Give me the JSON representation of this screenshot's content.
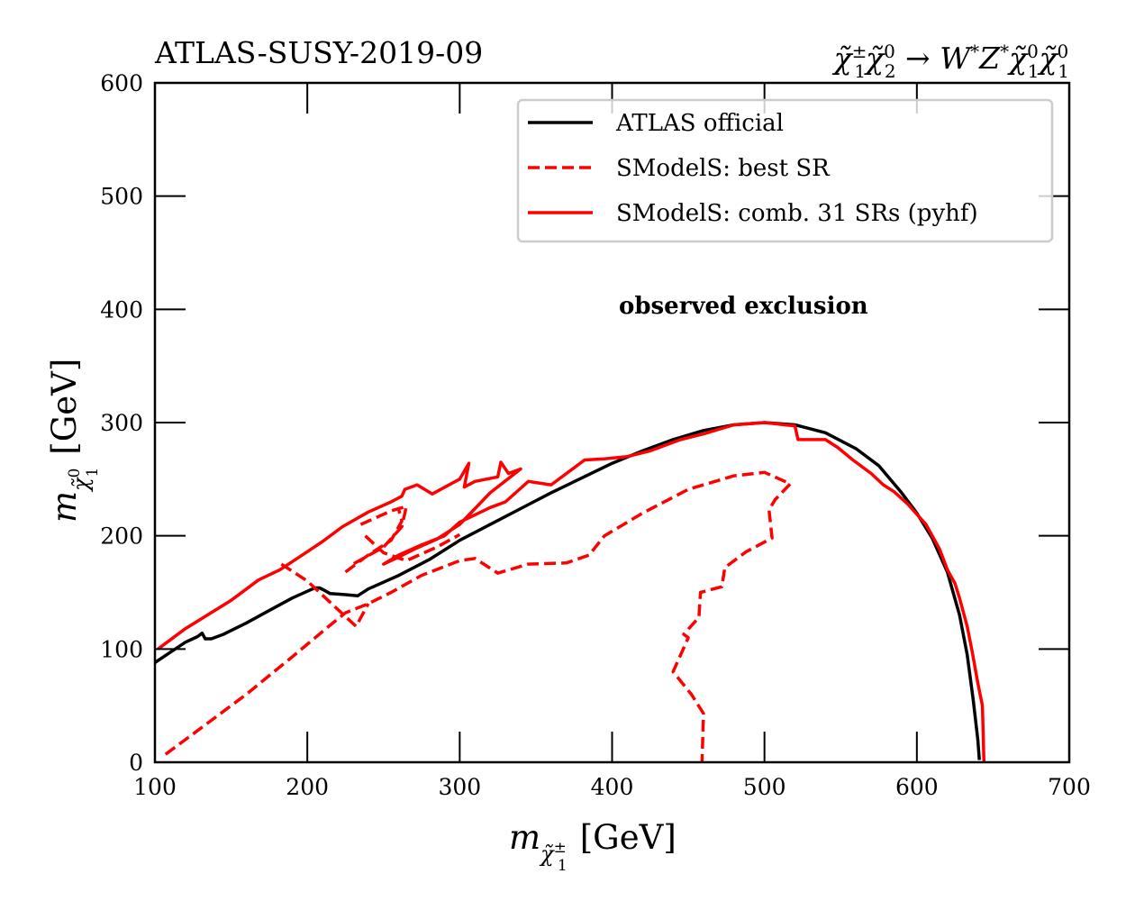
{
  "chart_data": {
    "type": "line",
    "title_left": "ATLAS-SUSY-2019-09",
    "title_right": "χ̃₁^± χ̃₂^0 → W* Z* χ̃₁^0 χ̃₁^0",
    "title_right_parts": {
      "p1": "χ̃",
      "p1sup": "±",
      "p1sub": "1",
      "p2": "χ̃",
      "p2sup": "0",
      "p2sub": "2",
      "arrow": " → ",
      "p3": "W",
      "p3sup": "*",
      "p4": "Z",
      "p4sup": "*",
      "p5": "χ̃",
      "p5sup": "0",
      "p5sub": "1",
      "p6": "χ̃",
      "p6sup": "0",
      "p6sub": "1"
    },
    "xlabel": "m_{χ̃₁^±} [GeV]",
    "xlabel_parts": {
      "m": "m",
      "sub": "χ̃",
      "subsup": "±",
      "subsub": "1",
      "unit": "[GeV]"
    },
    "ylabel": "m_{χ̃₁^0} [GeV]",
    "ylabel_parts": {
      "m": "m",
      "sub": "χ̃",
      "subsup": "0",
      "subsub": "1",
      "unit": "[GeV]"
    },
    "xlim": [
      100,
      700
    ],
    "ylim": [
      0,
      600
    ],
    "xticks": [
      100,
      200,
      300,
      400,
      500,
      600,
      700
    ],
    "yticks": [
      0,
      100,
      200,
      300,
      400,
      500,
      600
    ],
    "grid": false,
    "legend_position": "top-right",
    "annotation": "observed exclusion",
    "series": [
      {
        "name": "ATLAS official",
        "color": "#000000",
        "style": "solid",
        "points": [
          [
            100,
            88
          ],
          [
            110,
            97
          ],
          [
            120,
            106
          ],
          [
            128,
            111
          ],
          [
            131,
            114
          ],
          [
            133,
            109
          ],
          [
            137,
            109
          ],
          [
            145,
            113
          ],
          [
            160,
            123
          ],
          [
            175,
            134
          ],
          [
            190,
            145
          ],
          [
            200,
            151
          ],
          [
            205,
            154
          ],
          [
            208,
            154
          ],
          [
            211,
            152
          ],
          [
            215,
            149
          ],
          [
            225,
            148
          ],
          [
            233,
            147
          ],
          [
            240,
            153
          ],
          [
            260,
            165
          ],
          [
            280,
            179
          ],
          [
            300,
            196
          ],
          [
            320,
            210
          ],
          [
            340,
            224
          ],
          [
            360,
            238
          ],
          [
            380,
            251
          ],
          [
            400,
            264
          ],
          [
            420,
            275
          ],
          [
            440,
            285
          ],
          [
            460,
            293
          ],
          [
            480,
            298
          ],
          [
            500,
            300
          ],
          [
            520,
            298
          ],
          [
            540,
            291
          ],
          [
            560,
            277
          ],
          [
            575,
            262
          ],
          [
            590,
            238
          ],
          [
            600,
            220
          ],
          [
            610,
            198
          ],
          [
            620,
            168
          ],
          [
            628,
            130
          ],
          [
            633,
            95
          ],
          [
            637,
            55
          ],
          [
            640,
            20
          ],
          [
            641,
            2
          ]
        ]
      },
      {
        "name": "SModelS: best SR",
        "color": "#ff0000",
        "style": "dashed",
        "segments": [
          [
            [
              107,
              7
            ],
            [
              130,
              30
            ],
            [
              160,
              60
            ],
            [
              190,
              93
            ],
            [
              215,
              121
            ],
            [
              225,
              132
            ],
            [
              240,
              140
            ],
            [
              255,
              150
            ],
            [
              275,
              165
            ],
            [
              300,
              178
            ],
            [
              310,
              180
            ],
            [
              325,
              167
            ],
            [
              345,
              175
            ],
            [
              370,
              176
            ],
            [
              385,
              183
            ],
            [
              395,
              200
            ],
            [
              420,
              220
            ],
            [
              450,
              241
            ],
            [
              480,
              253
            ],
            [
              500,
              256
            ],
            [
              510,
              250
            ],
            [
              517,
              246
            ],
            [
              507,
              232
            ],
            [
              503,
              223
            ],
            [
              505,
              198
            ],
            [
              488,
              186
            ],
            [
              474,
              172
            ],
            [
              472,
              155
            ],
            [
              458,
              150
            ],
            [
              457,
              128
            ],
            [
              447,
              113
            ],
            [
              450,
              110
            ],
            [
              440,
              80
            ],
            [
              452,
              60
            ],
            [
              460,
              43
            ],
            [
              459,
              0
            ]
          ],
          [
            [
              183,
              175
            ],
            [
              200,
              160
            ],
            [
              220,
              135
            ],
            [
              232,
              120
            ],
            [
              240,
              140
            ]
          ],
          [
            [
              225,
              168
            ],
            [
              240,
              183
            ],
            [
              255,
              196
            ],
            [
              262,
              213
            ],
            [
              260,
              223
            ]
          ],
          [
            [
              235,
              210
            ],
            [
              255,
              222
            ],
            [
              265,
              226
            ],
            [
              262,
              208
            ],
            [
              250,
              190
            ],
            [
              230,
              175
            ]
          ],
          [
            [
              238,
              200
            ],
            [
              250,
              185
            ],
            [
              265,
              178
            ],
            [
              285,
              190
            ],
            [
              300,
              201
            ]
          ]
        ]
      },
      {
        "name": "SModelS: comb. 31 SRs (pyhf)",
        "color": "#ff0000",
        "style": "solid",
        "points": [
          [
            102,
            100
          ],
          [
            120,
            118
          ],
          [
            150,
            143
          ],
          [
            168,
            161
          ],
          [
            182,
            170
          ],
          [
            200,
            186
          ],
          [
            210,
            195
          ],
          [
            223,
            208
          ],
          [
            240,
            221
          ],
          [
            255,
            230
          ],
          [
            262,
            235
          ],
          [
            264,
            241
          ],
          [
            272,
            245
          ],
          [
            282,
            237
          ],
          [
            300,
            250
          ],
          [
            306,
            264
          ],
          [
            303,
            243
          ],
          [
            310,
            248
          ],
          [
            325,
            252
          ],
          [
            327,
            265
          ],
          [
            332,
            255
          ],
          [
            340,
            259
          ],
          [
            320,
            238
          ],
          [
            300,
            210
          ],
          [
            285,
            197
          ],
          [
            270,
            188
          ],
          [
            258,
            180
          ],
          [
            250,
            175
          ],
          [
            260,
            183
          ],
          [
            275,
            192
          ],
          [
            290,
            200
          ],
          [
            300,
            212
          ],
          [
            320,
            225
          ],
          [
            330,
            230
          ],
          [
            345,
            248
          ],
          [
            360,
            245
          ],
          [
            382,
            267
          ],
          [
            395,
            268
          ],
          [
            410,
            270
          ],
          [
            425,
            275
          ],
          [
            445,
            285
          ],
          [
            460,
            290
          ],
          [
            480,
            298
          ],
          [
            500,
            300
          ],
          [
            520,
            297
          ],
          [
            522,
            285
          ],
          [
            540,
            285
          ],
          [
            548,
            278
          ],
          [
            558,
            267
          ],
          [
            570,
            255
          ],
          [
            578,
            245
          ],
          [
            585,
            239
          ],
          [
            594,
            228
          ],
          [
            606,
            210
          ],
          [
            615,
            188
          ],
          [
            620,
            170
          ],
          [
            625,
            158
          ],
          [
            628,
            145
          ],
          [
            633,
            120
          ],
          [
            636,
            100
          ],
          [
            640,
            70
          ],
          [
            643,
            50
          ],
          [
            644,
            0
          ]
        ]
      }
    ]
  },
  "legend": {
    "items": [
      {
        "label": "ATLAS official",
        "color": "#000000",
        "style": "solid"
      },
      {
        "label": "SModelS: best SR",
        "color": "#ff0000",
        "style": "dashed"
      },
      {
        "label": "SModelS: comb. 31 SRs (pyhf)",
        "color": "#ff0000",
        "style": "solid"
      }
    ]
  }
}
